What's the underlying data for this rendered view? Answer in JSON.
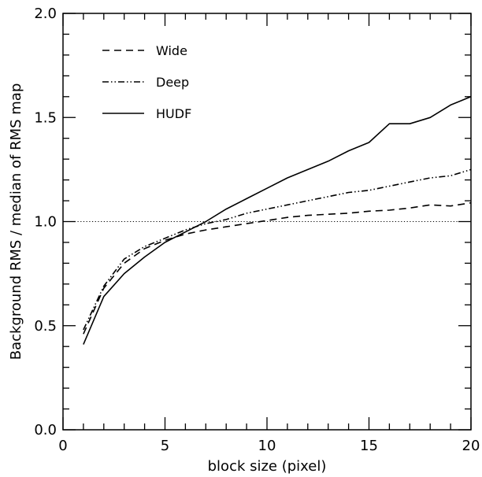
{
  "chart_data": {
    "type": "line",
    "title": "",
    "xlabel": "block size (pixel)",
    "ylabel": "Background RMS / median of RMS map",
    "xlim": [
      0,
      20
    ],
    "ylim": [
      0.0,
      2.0
    ],
    "x_ticks": [
      "0",
      "5",
      "10",
      "15",
      "20"
    ],
    "y_ticks": [
      "0.0",
      "0.5",
      "1.0",
      "1.5",
      "2.0"
    ],
    "grid": false,
    "legend_position": "top-left",
    "reference_line": {
      "y": 1.0,
      "style": "dotted"
    },
    "series": [
      {
        "name": "Wide",
        "style": "dashed",
        "x": [
          1,
          2,
          3,
          4,
          5,
          6,
          7,
          8,
          9,
          10,
          11,
          12,
          13,
          14,
          15,
          16,
          17,
          18,
          19,
          20
        ],
        "y": [
          0.46,
          0.68,
          0.8,
          0.87,
          0.91,
          0.94,
          0.96,
          0.975,
          0.99,
          1.005,
          1.02,
          1.03,
          1.035,
          1.04,
          1.05,
          1.055,
          1.065,
          1.08,
          1.075,
          1.09
        ]
      },
      {
        "name": "Deep",
        "style": "dash-dot-dot",
        "x": [
          1,
          2,
          3,
          4,
          5,
          6,
          7,
          8,
          9,
          10,
          11,
          12,
          13,
          14,
          15,
          16,
          17,
          18,
          19,
          20
        ],
        "y": [
          0.48,
          0.69,
          0.82,
          0.88,
          0.92,
          0.96,
          0.99,
          1.01,
          1.04,
          1.06,
          1.08,
          1.1,
          1.12,
          1.14,
          1.15,
          1.17,
          1.19,
          1.21,
          1.22,
          1.25
        ]
      },
      {
        "name": "HUDF",
        "style": "solid",
        "x": [
          1,
          2,
          3,
          4,
          5,
          6,
          7,
          8,
          9,
          10,
          11,
          12,
          13,
          14,
          15,
          16,
          17,
          18,
          19,
          20
        ],
        "y": [
          0.41,
          0.64,
          0.75,
          0.83,
          0.9,
          0.95,
          1.0,
          1.06,
          1.11,
          1.16,
          1.21,
          1.25,
          1.29,
          1.34,
          1.38,
          1.47,
          1.47,
          1.5,
          1.56,
          1.6
        ]
      }
    ]
  }
}
